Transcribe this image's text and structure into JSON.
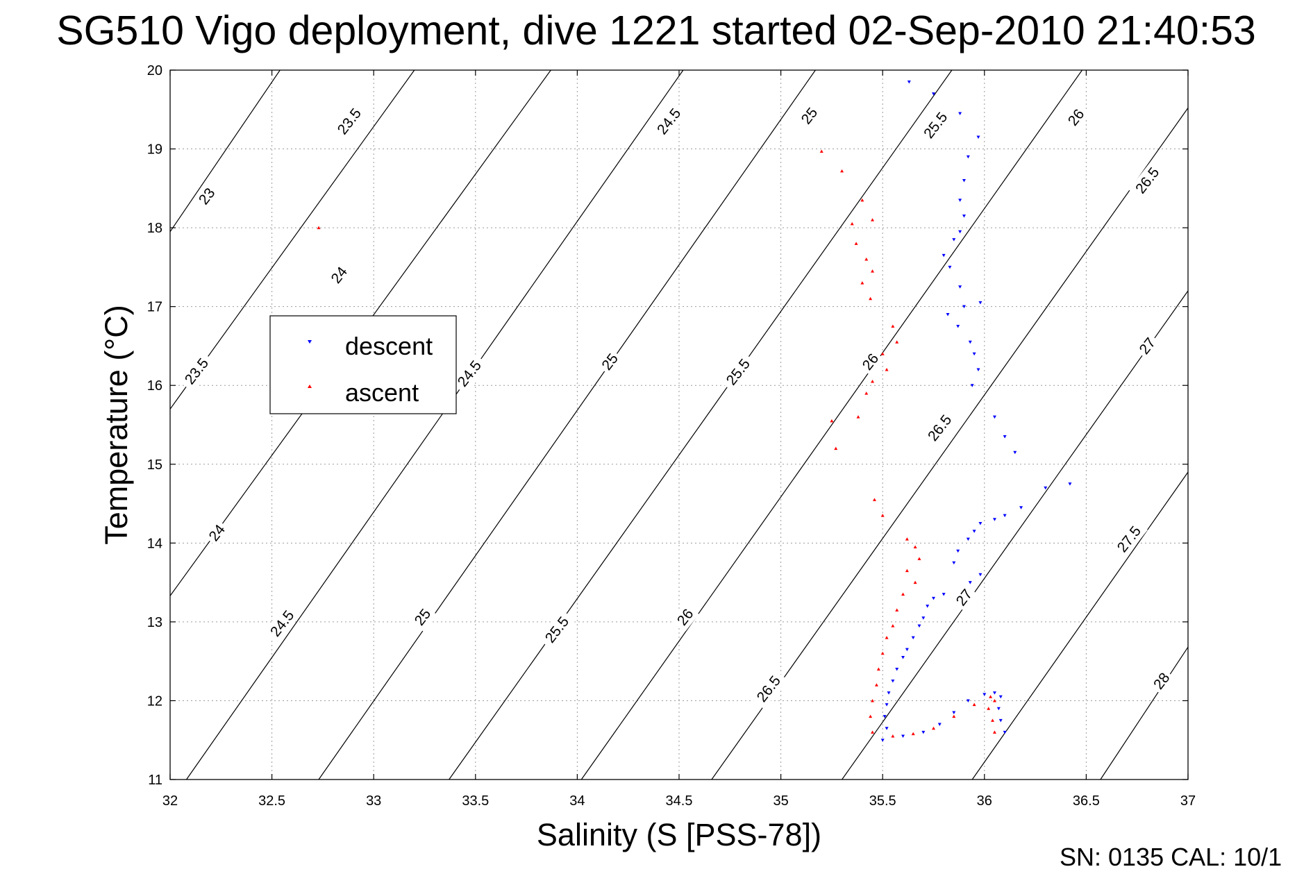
{
  "title": "SG510 Vigo deployment, dive 1221 started 02-Sep-2010 21:40:53",
  "footer": "SN: 0135  CAL: 10/1",
  "chart_data": {
    "type": "scatter",
    "title": "SG510 Vigo deployment, dive 1221 started 02-Sep-2010 21:40:53",
    "xlabel": "Salinity (S [PSS-78])",
    "ylabel": "Temperature (°C)",
    "xlim": [
      32,
      37
    ],
    "ylim": [
      11,
      20
    ],
    "grid": true,
    "xticks": [
      32,
      32.5,
      33,
      33.5,
      34,
      34.5,
      35,
      35.5,
      36,
      36.5,
      37
    ],
    "xtick_labels": [
      "32",
      "32.5",
      "33",
      "33.5",
      "34",
      "34.5",
      "35",
      "35.5",
      "36",
      "36.5",
      "37"
    ],
    "yticks": [
      11,
      12,
      13,
      14,
      15,
      16,
      17,
      18,
      19,
      20
    ],
    "ytick_labels": [
      "11",
      "12",
      "13",
      "14",
      "15",
      "16",
      "17",
      "18",
      "19",
      "20"
    ],
    "legend": {
      "position": "upper-left",
      "entries": [
        "descent",
        "ascent"
      ]
    },
    "density_contours": [
      {
        "level": 23,
        "label": "23",
        "points": [
          [
            32,
            17.95
          ],
          [
            32.54,
            20
          ]
        ]
      },
      {
        "level": 23.5,
        "label": "23.5",
        "points": [
          [
            32,
            15.7
          ],
          [
            33.2,
            20
          ]
        ]
      },
      {
        "level": 24,
        "label": "24",
        "points": [
          [
            32,
            13.33
          ],
          [
            33.87,
            20
          ]
        ]
      },
      {
        "level": 24.5,
        "label": "24.5",
        "points": [
          [
            32.08,
            11
          ],
          [
            34.52,
            20
          ]
        ]
      },
      {
        "level": 25,
        "label": "25",
        "points": [
          [
            32.73,
            11
          ],
          [
            35.17,
            20
          ]
        ]
      },
      {
        "level": 25.5,
        "label": "25.5",
        "points": [
          [
            33.37,
            11
          ],
          [
            35.84,
            20
          ]
        ]
      },
      {
        "level": 26,
        "label": "26",
        "points": [
          [
            34.02,
            11
          ],
          [
            36.48,
            20
          ]
        ]
      },
      {
        "level": 26.5,
        "label": "26.5",
        "points": [
          [
            34.66,
            11
          ],
          [
            37,
            19.52
          ]
        ]
      },
      {
        "level": 27,
        "label": "27",
        "points": [
          [
            35.3,
            11
          ],
          [
            37,
            17.2
          ]
        ]
      },
      {
        "level": 27.5,
        "label": "27.5",
        "points": [
          [
            35.94,
            11
          ],
          [
            37,
            14.9
          ]
        ]
      },
      {
        "level": 28,
        "label": "28",
        "points": [
          [
            36.57,
            11
          ],
          [
            37,
            12.68
          ]
        ]
      }
    ],
    "contour_label_positions": [
      {
        "label": "23",
        "x": 32.18,
        "y": 18.4
      },
      {
        "label": "23.5",
        "x": 32.88,
        "y": 19.35
      },
      {
        "label": "24.5",
        "x": 34.45,
        "y": 19.35
      },
      {
        "label": "25",
        "x": 35.14,
        "y": 19.42
      },
      {
        "label": "25.5",
        "x": 35.76,
        "y": 19.3
      },
      {
        "label": "26",
        "x": 36.45,
        "y": 19.4
      },
      {
        "label": "26.5",
        "x": 36.8,
        "y": 18.6
      },
      {
        "label": "24",
        "x": 32.83,
        "y": 17.4
      },
      {
        "label": "23.5",
        "x": 32.13,
        "y": 16.18
      },
      {
        "label": "24.5",
        "x": 33.47,
        "y": 16.15
      },
      {
        "label": "25",
        "x": 34.16,
        "y": 16.3
      },
      {
        "label": "25.5",
        "x": 34.79,
        "y": 16.17
      },
      {
        "label": "26",
        "x": 35.44,
        "y": 16.3
      },
      {
        "label": "27",
        "x": 36.8,
        "y": 16.5
      },
      {
        "label": "26.5",
        "x": 35.78,
        "y": 15.46
      },
      {
        "label": "24",
        "x": 32.23,
        "y": 14.13
      },
      {
        "label": "27.5",
        "x": 36.71,
        "y": 14.05
      },
      {
        "label": "27",
        "x": 35.9,
        "y": 13.31
      },
      {
        "label": "24.5",
        "x": 32.55,
        "y": 12.98
      },
      {
        "label": "25",
        "x": 33.24,
        "y": 13.06
      },
      {
        "label": "25.5",
        "x": 33.9,
        "y": 12.9
      },
      {
        "label": "26",
        "x": 34.53,
        "y": 13.06
      },
      {
        "label": "28",
        "x": 36.87,
        "y": 12.25
      },
      {
        "label": "26.5",
        "x": 34.94,
        "y": 12.15
      }
    ],
    "series": [
      {
        "name": "descent",
        "color": "#0000ff",
        "marker": "triangle-down",
        "points": [
          [
            35.63,
            19.85
          ],
          [
            35.75,
            19.7
          ],
          [
            35.88,
            19.45
          ],
          [
            35.97,
            19.15
          ],
          [
            35.92,
            18.9
          ],
          [
            35.9,
            18.6
          ],
          [
            35.88,
            18.35
          ],
          [
            35.9,
            18.15
          ],
          [
            35.88,
            17.95
          ],
          [
            35.85,
            17.85
          ],
          [
            35.8,
            17.65
          ],
          [
            35.83,
            17.5
          ],
          [
            35.88,
            17.25
          ],
          [
            35.98,
            17.05
          ],
          [
            35.9,
            17.0
          ],
          [
            35.82,
            16.9
          ],
          [
            35.87,
            16.75
          ],
          [
            35.93,
            16.55
          ],
          [
            35.95,
            16.4
          ],
          [
            35.97,
            16.2
          ],
          [
            35.94,
            16.0
          ],
          [
            36.05,
            15.6
          ],
          [
            36.1,
            15.35
          ],
          [
            36.15,
            15.15
          ],
          [
            36.3,
            14.7
          ],
          [
            36.42,
            14.75
          ],
          [
            36.18,
            14.45
          ],
          [
            36.1,
            14.35
          ],
          [
            36.05,
            14.3
          ],
          [
            35.98,
            14.25
          ],
          [
            35.95,
            14.15
          ],
          [
            35.92,
            14.05
          ],
          [
            35.87,
            13.9
          ],
          [
            35.85,
            13.75
          ],
          [
            35.98,
            13.6
          ],
          [
            35.93,
            13.5
          ],
          [
            35.8,
            13.35
          ],
          [
            35.75,
            13.3
          ],
          [
            35.72,
            13.2
          ],
          [
            35.7,
            13.05
          ],
          [
            35.68,
            12.95
          ],
          [
            35.65,
            12.8
          ],
          [
            35.62,
            12.65
          ],
          [
            35.6,
            12.55
          ],
          [
            35.57,
            12.4
          ],
          [
            35.55,
            12.25
          ],
          [
            35.53,
            12.1
          ],
          [
            35.52,
            11.95
          ],
          [
            35.51,
            11.8
          ],
          [
            35.52,
            11.65
          ],
          [
            35.5,
            11.5
          ],
          [
            35.6,
            11.55
          ],
          [
            35.7,
            11.6
          ],
          [
            35.78,
            11.7
          ],
          [
            35.85,
            11.85
          ],
          [
            35.92,
            12.0
          ],
          [
            36.0,
            12.08
          ],
          [
            36.05,
            12.1
          ],
          [
            36.08,
            12.05
          ],
          [
            36.07,
            11.9
          ],
          [
            36.08,
            11.75
          ],
          [
            36.1,
            11.6
          ]
        ]
      },
      {
        "name": "ascent",
        "color": "#ff0000",
        "marker": "triangle-up",
        "points": [
          [
            32.73,
            18.0
          ],
          [
            35.2,
            18.97
          ],
          [
            35.3,
            18.72
          ],
          [
            35.4,
            18.35
          ],
          [
            35.45,
            18.1
          ],
          [
            35.35,
            18.05
          ],
          [
            35.37,
            17.8
          ],
          [
            35.42,
            17.6
          ],
          [
            35.45,
            17.45
          ],
          [
            35.4,
            17.3
          ],
          [
            35.44,
            17.1
          ],
          [
            35.55,
            16.75
          ],
          [
            35.57,
            16.55
          ],
          [
            35.5,
            16.4
          ],
          [
            35.52,
            16.2
          ],
          [
            35.45,
            16.05
          ],
          [
            35.42,
            15.9
          ],
          [
            35.38,
            15.6
          ],
          [
            35.25,
            15.55
          ],
          [
            35.27,
            15.2
          ],
          [
            35.46,
            14.55
          ],
          [
            35.5,
            14.35
          ],
          [
            35.62,
            14.05
          ],
          [
            35.66,
            13.95
          ],
          [
            35.68,
            13.8
          ],
          [
            35.62,
            13.65
          ],
          [
            35.66,
            13.5
          ],
          [
            35.6,
            13.35
          ],
          [
            35.57,
            13.15
          ],
          [
            35.55,
            12.95
          ],
          [
            35.52,
            12.8
          ],
          [
            35.5,
            12.6
          ],
          [
            35.48,
            12.4
          ],
          [
            35.47,
            12.2
          ],
          [
            35.45,
            12.0
          ],
          [
            35.44,
            11.8
          ],
          [
            35.45,
            11.6
          ],
          [
            35.55,
            11.55
          ],
          [
            35.65,
            11.58
          ],
          [
            35.75,
            11.65
          ],
          [
            35.85,
            11.8
          ],
          [
            35.95,
            11.95
          ],
          [
            36.03,
            12.05
          ],
          [
            36.05,
            12.0
          ],
          [
            36.02,
            11.9
          ],
          [
            36.04,
            11.75
          ],
          [
            36.05,
            11.6
          ]
        ]
      }
    ]
  }
}
